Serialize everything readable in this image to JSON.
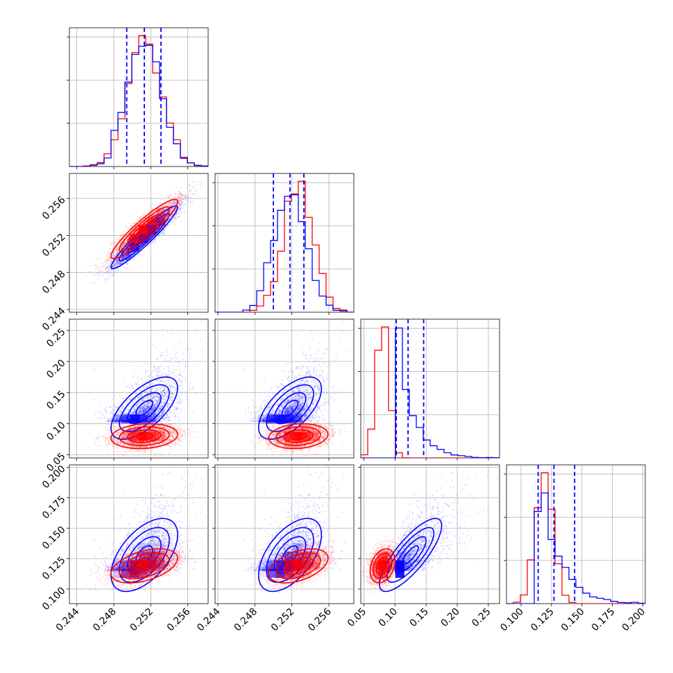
{
  "colors": {
    "series_a": "#0000ff",
    "series_b": "#ff0000",
    "grid": "#b0b0b0"
  },
  "chart_data": {
    "type": "corner",
    "grid": true,
    "n_params": 4,
    "params": [
      {
        "ticks": [
          0.244,
          0.248,
          0.252,
          0.256
        ],
        "tick_labels": [
          "0.244",
          "0.248",
          "0.252",
          "0.256"
        ],
        "range": [
          0.2432,
          0.2582
        ]
      },
      {
        "ticks": [
          0.244,
          0.248,
          0.252,
          0.256
        ],
        "tick_labels": [
          "0.244",
          "0.248",
          "0.252",
          "0.256"
        ],
        "range": [
          0.2437,
          0.2587
        ]
      },
      {
        "ticks": [
          0.05,
          0.1,
          0.15,
          0.2,
          0.25
        ],
        "tick_labels": [
          "0.05",
          "0.10",
          "0.15",
          "0.20",
          "0.25"
        ],
        "range": [
          0.045,
          0.268
        ]
      },
      {
        "ticks": [
          0.1,
          0.125,
          0.15,
          0.175,
          0.2
        ],
        "tick_labels": [
          "0.100",
          "0.125",
          "0.150",
          "0.175",
          "0.200"
        ],
        "range": [
          0.088,
          0.202
        ]
      }
    ],
    "series": [
      {
        "color": "#0000ff",
        "mean": [
          0.2513,
          0.2518,
          0.125,
          0.128
        ],
        "std": [
          0.0018,
          0.0017,
          0.025,
          0.015
        ],
        "quantiles": [
          [
            0.2494,
            0.2513,
            0.2531
          ],
          [
            0.25,
            0.2518,
            0.2533
          ],
          [
            0.102,
            0.121,
            0.146
          ],
          [
            0.114,
            0.127,
            0.144
          ]
        ],
        "correlation": [
          [
            1.0,
            0.95,
            0.65,
            0.55
          ],
          [
            0.95,
            1.0,
            0.62,
            0.55
          ],
          [
            0.65,
            0.62,
            1.0,
            0.8
          ],
          [
            0.55,
            0.55,
            0.8,
            1.0
          ]
        ]
      },
      {
        "color": "#ff0000",
        "mean": [
          0.2513,
          0.2527,
          0.08,
          0.119
        ],
        "std": [
          0.0018,
          0.0016,
          0.01,
          0.007
        ],
        "correlation": [
          [
            1.0,
            0.92,
            0.15,
            0.45
          ],
          [
            0.92,
            1.0,
            0.15,
            0.45
          ],
          [
            0.15,
            0.15,
            1.0,
            0.3
          ],
          [
            0.45,
            0.45,
            0.3,
            1.0
          ]
        ]
      }
    ]
  }
}
